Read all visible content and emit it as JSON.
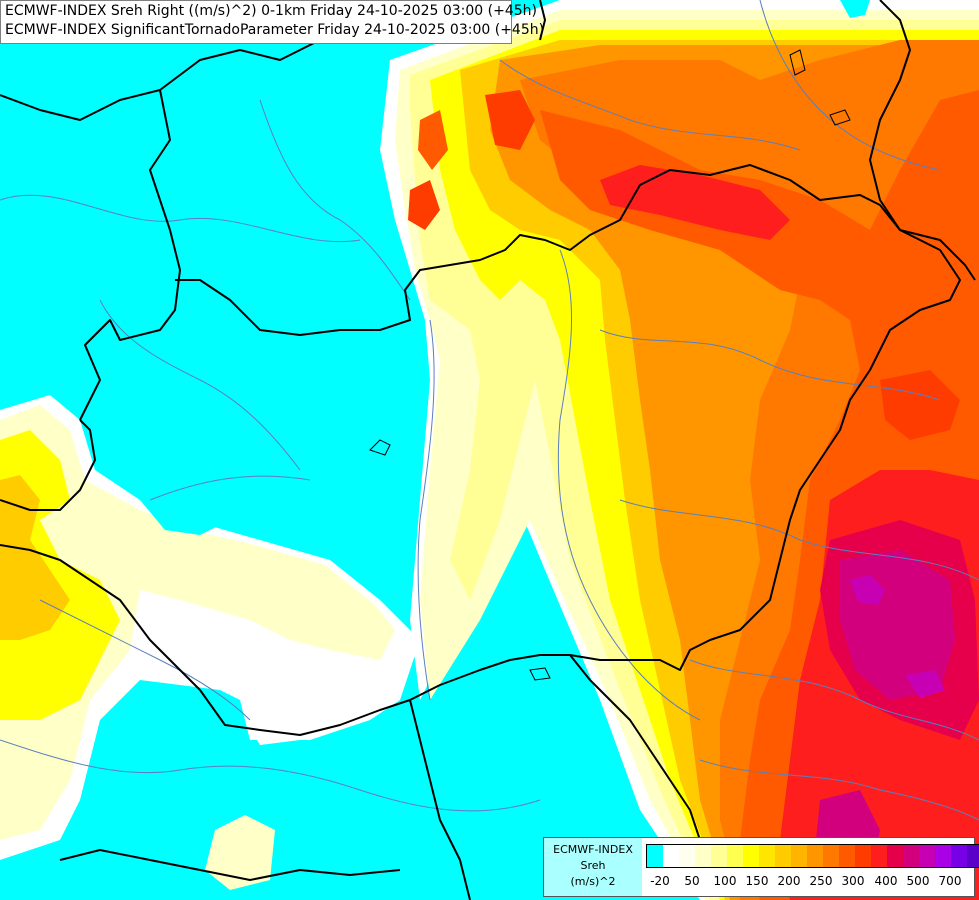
{
  "title": {
    "line1": "ECMWF-INDEX Sreh Right ((m/s)^2) 0-1km Friday 24-10-2025 03:00 (+45h)",
    "line2": "ECMWF-INDEX SignificantTornadoParameter Friday 24-10-2025 03:00 (+45h)"
  },
  "legend": {
    "model": "ECMWF-INDEX",
    "variable": "Sreh",
    "unit": "(m/s)^2",
    "tick_labels": [
      "-20",
      "50",
      "100",
      "150",
      "200",
      "250",
      "300",
      "400",
      "500",
      "700"
    ],
    "colors": [
      "#00ffff",
      "#ffffff",
      "#fffff0",
      "#ffffc8",
      "#ffff96",
      "#ffff50",
      "#ffff00",
      "#ffe600",
      "#ffcc00",
      "#ffb400",
      "#ff9600",
      "#ff7800",
      "#ff5a00",
      "#ff3c00",
      "#ff1e1e",
      "#e6004b",
      "#d2007d",
      "#c800b4",
      "#aa00e6",
      "#7800e6",
      "#5a00c8",
      "#3c00a0",
      "#1e0078"
    ]
  },
  "map": {
    "region": "Central Europe",
    "colors": {
      "background": "#00ffff",
      "border": "#000000",
      "river": "#5a7fbf"
    }
  }
}
